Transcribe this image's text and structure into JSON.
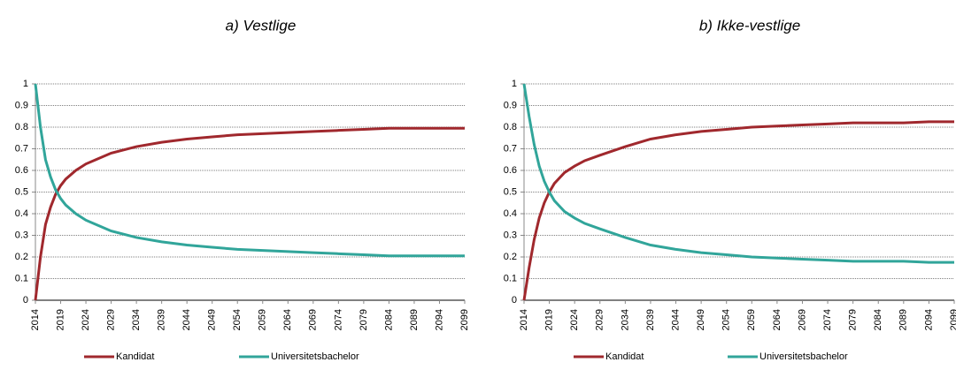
{
  "chart_data": [
    {
      "type": "line",
      "title": "a) Vestlige",
      "x": [
        2014,
        2015,
        2016,
        2017,
        2018,
        2019,
        2020,
        2022,
        2024,
        2026,
        2029,
        2034,
        2039,
        2044,
        2049,
        2054,
        2059,
        2064,
        2069,
        2074,
        2079,
        2084,
        2089,
        2094,
        2099
      ],
      "series": [
        {
          "name": "Kandidat",
          "color": "#a0282d",
          "values": [
            0,
            0.2,
            0.35,
            0.43,
            0.49,
            0.53,
            0.56,
            0.6,
            0.63,
            0.65,
            0.68,
            0.71,
            0.73,
            0.745,
            0.755,
            0.765,
            0.77,
            0.775,
            0.78,
            0.785,
            0.79,
            0.795,
            0.795,
            0.795,
            0.795
          ]
        },
        {
          "name": "Universitetsbachelor",
          "color": "#31a59a",
          "values": [
            1,
            0.8,
            0.65,
            0.57,
            0.51,
            0.47,
            0.44,
            0.4,
            0.37,
            0.35,
            0.32,
            0.29,
            0.27,
            0.255,
            0.245,
            0.235,
            0.23,
            0.225,
            0.22,
            0.215,
            0.21,
            0.205,
            0.205,
            0.205,
            0.205
          ]
        }
      ],
      "xlim": [
        2014,
        2099
      ],
      "xticks": [
        2014,
        2019,
        2024,
        2029,
        2034,
        2039,
        2044,
        2049,
        2054,
        2059,
        2064,
        2069,
        2074,
        2079,
        2084,
        2089,
        2094,
        2099
      ],
      "ylim": [
        0,
        1
      ],
      "yticks": [
        0,
        0.1,
        0.2,
        0.3,
        0.4,
        0.5,
        0.6,
        0.7,
        0.8,
        0.9,
        1
      ],
      "grid": true
    },
    {
      "type": "line",
      "title": "b) Ikke-vestlige",
      "x": [
        2014,
        2015,
        2016,
        2017,
        2018,
        2019,
        2020,
        2022,
        2024,
        2026,
        2029,
        2034,
        2039,
        2044,
        2049,
        2054,
        2059,
        2064,
        2069,
        2074,
        2079,
        2084,
        2089,
        2094,
        2099
      ],
      "series": [
        {
          "name": "Kandidat",
          "color": "#a0282d",
          "values": [
            0,
            0.15,
            0.28,
            0.38,
            0.45,
            0.5,
            0.54,
            0.59,
            0.62,
            0.645,
            0.67,
            0.71,
            0.745,
            0.765,
            0.78,
            0.79,
            0.8,
            0.805,
            0.81,
            0.815,
            0.82,
            0.82,
            0.82,
            0.825,
            0.825
          ]
        },
        {
          "name": "Universitetsbachelor",
          "color": "#31a59a",
          "values": [
            1,
            0.85,
            0.72,
            0.62,
            0.55,
            0.5,
            0.46,
            0.41,
            0.38,
            0.355,
            0.33,
            0.29,
            0.255,
            0.235,
            0.22,
            0.21,
            0.2,
            0.195,
            0.19,
            0.185,
            0.18,
            0.18,
            0.18,
            0.175,
            0.175
          ]
        }
      ],
      "xlim": [
        2014,
        2099
      ],
      "xticks": [
        2014,
        2019,
        2024,
        2029,
        2034,
        2039,
        2044,
        2049,
        2054,
        2059,
        2064,
        2069,
        2074,
        2079,
        2084,
        2089,
        2094,
        2099
      ],
      "ylim": [
        0,
        1
      ],
      "yticks": [
        0,
        0.1,
        0.2,
        0.3,
        0.4,
        0.5,
        0.6,
        0.7,
        0.8,
        0.9,
        1
      ],
      "grid": true
    }
  ]
}
